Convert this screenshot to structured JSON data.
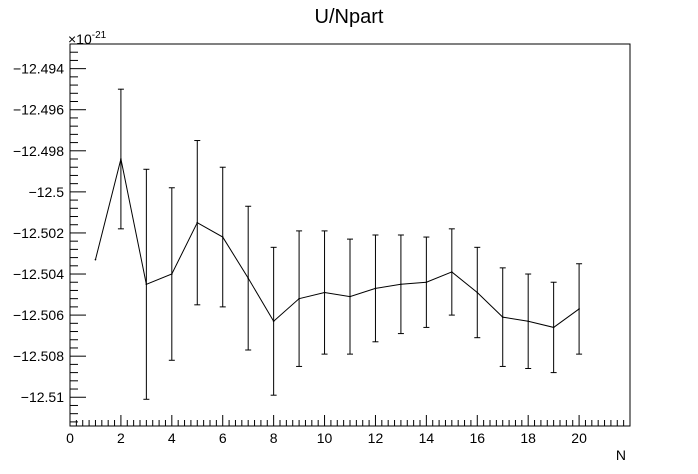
{
  "chart_data": {
    "type": "line",
    "title": "U/Npart",
    "xlabel": "N",
    "ylabel": "",
    "y_exponent_label": "×10",
    "y_exponent_power": "-21",
    "xlim": [
      0,
      22
    ],
    "ylim": [
      -12.5114,
      -12.4928
    ],
    "x_ticks": [
      0,
      2,
      4,
      6,
      8,
      10,
      12,
      14,
      16,
      18,
      20
    ],
    "x_tick_labels": [
      "0",
      "2",
      "4",
      "6",
      "8",
      "10",
      "12",
      "14",
      "16",
      "18",
      "20"
    ],
    "y_ticks": [
      -12.494,
      -12.496,
      -12.498,
      -12.5,
      -12.502,
      -12.504,
      -12.506,
      -12.508,
      -12.51
    ],
    "y_tick_labels": [
      "−12.494",
      "−12.496",
      "−12.498",
      "−12.5",
      "−12.502",
      "−12.504",
      "−12.506",
      "−12.508",
      "−12.51"
    ],
    "grid": false,
    "series": [
      {
        "x": [
          1,
          2,
          3,
          4,
          5,
          6,
          7,
          8,
          9,
          10,
          11,
          12,
          13,
          14,
          15,
          16,
          17,
          18,
          19,
          20
        ],
        "y": [
          -12.5033,
          -12.4984,
          -12.5045,
          -12.504,
          -12.5015,
          -12.5022,
          -12.5042,
          -12.5063,
          -12.5052,
          -12.5049,
          -12.5051,
          -12.5047,
          -12.5045,
          -12.5044,
          -12.5039,
          -12.5049,
          -12.5061,
          -12.5063,
          -12.5066,
          -12.5057
        ],
        "err": [
          null,
          0.0034,
          0.0056,
          0.0042,
          0.004,
          0.0034,
          0.0035,
          0.0036,
          0.0033,
          0.003,
          0.0028,
          0.0026,
          0.0024,
          0.0022,
          0.0021,
          0.0022,
          0.0024,
          0.0023,
          0.0022,
          0.0022
        ]
      }
    ],
    "colors": {
      "line": "#000000",
      "frame": "#000000",
      "background": "#ffffff"
    }
  }
}
